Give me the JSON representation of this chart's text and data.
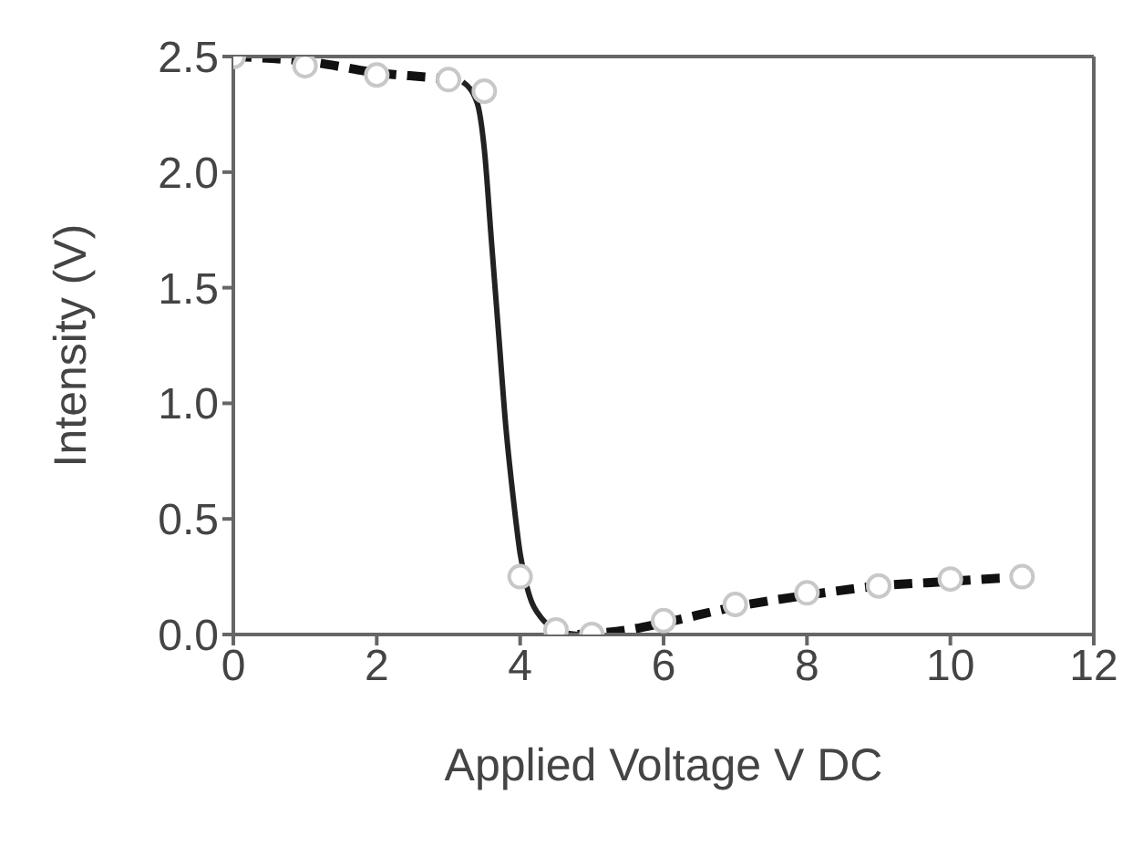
{
  "chart_data": {
    "type": "line",
    "xlabel": "Applied Voltage V DC",
    "ylabel": "Intensity (V)",
    "xlim": [
      0,
      12
    ],
    "xticks": [
      0,
      2,
      4,
      6,
      8,
      10,
      12
    ],
    "ylim": [
      0,
      2.5
    ],
    "yticks": [
      {
        "value": 0,
        "label": "0.0"
      },
      0.5,
      {
        "value": 1,
        "label": "1.0"
      },
      1.5,
      {
        "value": 2,
        "label": "2.0"
      },
      2.5
    ],
    "legend": false,
    "series": [
      {
        "line_style": "dashed",
        "color": "#111111",
        "x": [
          0,
          1,
          2,
          3,
          3.2,
          3.3,
          4.8,
          5.5,
          6,
          7,
          8,
          9,
          10,
          11
        ],
        "values": [
          2.5,
          2.48,
          2.43,
          2.4,
          2.39,
          null,
          0,
          0.02,
          0.05,
          0.12,
          0.17,
          0.21,
          0.23,
          0.25
        ]
      },
      {
        "line_style": "solid",
        "color": "#222222",
        "x": [
          3.2,
          3.4,
          3.5,
          3.6,
          3.7,
          3.8,
          3.9,
          4,
          4.1,
          4.3,
          4.6,
          4.8
        ],
        "values": [
          2.39,
          2.3,
          2.1,
          1.7,
          1.3,
          0.9,
          0.6,
          0.35,
          0.2,
          0.07,
          0.01,
          0
        ]
      },
      {
        "type": "scatter",
        "marker": "circle",
        "color": "#c8c8c8",
        "x": [
          0,
          1,
          2,
          3,
          3.5,
          4,
          4.5,
          5,
          6,
          7,
          8,
          9,
          10,
          11
        ],
        "values": [
          2.5,
          2.46,
          2.42,
          2.4,
          2.35,
          0.25,
          0.02,
          0,
          0.06,
          0.13,
          0.18,
          0.21,
          0.24,
          0.25
        ]
      }
    ]
  }
}
